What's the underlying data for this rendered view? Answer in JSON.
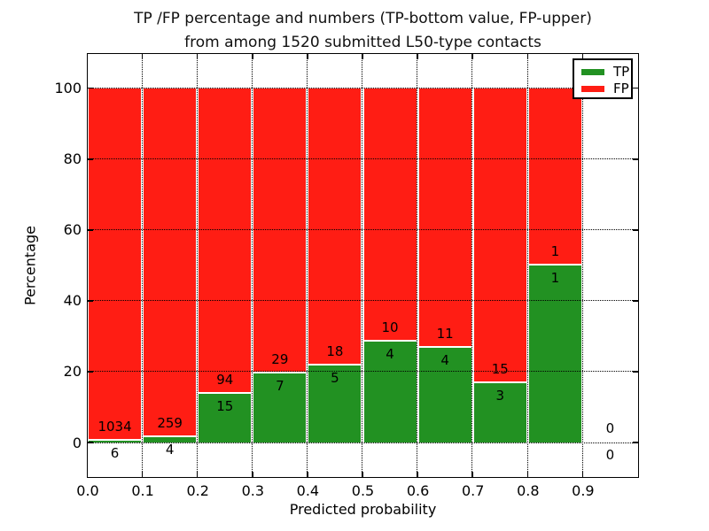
{
  "chart_data": {
    "type": "bar",
    "stacked": true,
    "orientation": "vertical",
    "title_lines": [
      "TP /FP percentage and numbers (TP-bottom value, FP-upper)",
      "from among 1520 submitted L50-type contacts"
    ],
    "title": "TP /FP percentage and numbers (TP-bottom value, FP-upper) from among 1520 submitted L50-type contacts",
    "xlabel": "Predicted probability",
    "ylabel": "Percentage",
    "xlim": [
      0.0,
      1.0
    ],
    "ylim": [
      -10,
      110
    ],
    "x_tick_labels": [
      "0.0",
      "0.1",
      "0.2",
      "0.3",
      "0.4",
      "0.5",
      "0.6",
      "0.7",
      "0.8",
      "0.9"
    ],
    "y_tick_values": [
      0,
      20,
      40,
      60,
      80,
      100
    ],
    "grid": true,
    "total_submitted": 1520,
    "series": [
      {
        "name": "TP",
        "color": "#229122"
      },
      {
        "name": "FP",
        "color": "#ff1d14"
      }
    ],
    "bar_edge_color": "#ffffff",
    "bins": [
      {
        "x0": 0.0,
        "x1": 0.1,
        "tp": 6,
        "fp": 1034,
        "tp_pct": 0.58,
        "fp_pct": 99.42,
        "has_bar": true
      },
      {
        "x0": 0.1,
        "x1": 0.2,
        "tp": 4,
        "fp": 259,
        "tp_pct": 1.52,
        "fp_pct": 98.48,
        "has_bar": true
      },
      {
        "x0": 0.2,
        "x1": 0.3,
        "tp": 15,
        "fp": 94,
        "tp_pct": 13.76,
        "fp_pct": 86.24,
        "has_bar": true
      },
      {
        "x0": 0.3,
        "x1": 0.4,
        "tp": 7,
        "fp": 29,
        "tp_pct": 19.44,
        "fp_pct": 80.56,
        "has_bar": true
      },
      {
        "x0": 0.4,
        "x1": 0.5,
        "tp": 5,
        "fp": 18,
        "tp_pct": 21.74,
        "fp_pct": 78.26,
        "has_bar": true
      },
      {
        "x0": 0.5,
        "x1": 0.6,
        "tp": 4,
        "fp": 10,
        "tp_pct": 28.57,
        "fp_pct": 71.43,
        "has_bar": true
      },
      {
        "x0": 0.6,
        "x1": 0.7,
        "tp": 4,
        "fp": 11,
        "tp_pct": 26.67,
        "fp_pct": 73.33,
        "has_bar": true
      },
      {
        "x0": 0.7,
        "x1": 0.8,
        "tp": 3,
        "fp": 15,
        "tp_pct": 16.67,
        "fp_pct": 83.33,
        "has_bar": true
      },
      {
        "x0": 0.8,
        "x1": 0.9,
        "tp": 1,
        "fp": 1,
        "tp_pct": 50.0,
        "fp_pct": 50.0,
        "has_bar": true
      },
      {
        "x0": 0.9,
        "x1": 1.0,
        "tp": 0,
        "fp": 0,
        "tp_pct": 0.0,
        "fp_pct": 0.0,
        "has_bar": false
      }
    ],
    "legend": {
      "position": "upper right",
      "items": [
        "TP",
        "FP"
      ]
    }
  }
}
